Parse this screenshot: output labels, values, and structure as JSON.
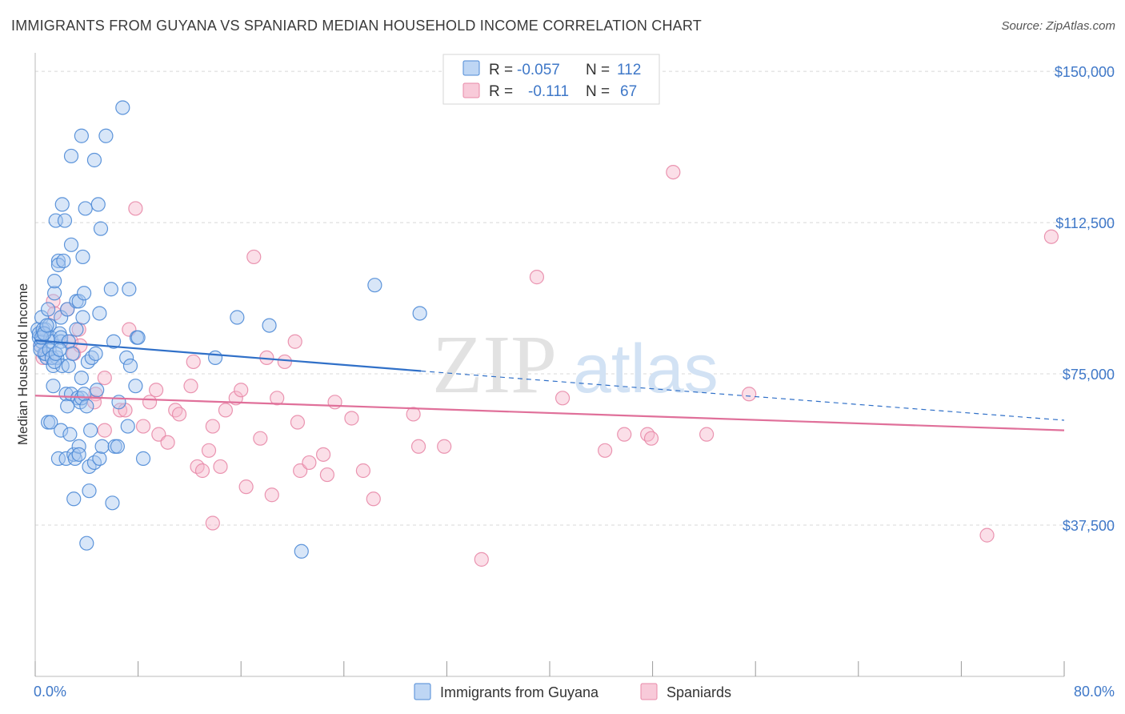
{
  "header": {
    "title": "IMMIGRANTS FROM GUYANA VS SPANIARD MEDIAN HOUSEHOLD INCOME CORRELATION CHART",
    "source": "Source: ZipAtlas.com"
  },
  "watermark": {
    "zip": "ZIP",
    "atlas": "atlas"
  },
  "legend": {
    "rows": [
      {
        "r_label": "R =",
        "r_value": "-0.057",
        "n_label": "N =",
        "n_value": "112"
      },
      {
        "r_label": "R =",
        "r_value": "-0.111",
        "n_label": "N =",
        "n_value": "67"
      }
    ]
  },
  "colors": {
    "series1_fill": "#a8c8f0",
    "series1_stroke": "#4d8ad6",
    "series1_line": "#3070c8",
    "series2_fill": "#f6b8cc",
    "series2_stroke": "#e889a8",
    "series2_line": "#e0709a",
    "tick_text": "#3f78c8",
    "grid": "#d8d8d8"
  },
  "chart_data": {
    "type": "scatter",
    "title": "IMMIGRANTS FROM GUYANA VS SPANIARD MEDIAN HOUSEHOLD INCOME CORRELATION CHART",
    "xlabel": "",
    "ylabel": "Median Household Income",
    "xlim": [
      0,
      80
    ],
    "ylim": [
      0,
      153000
    ],
    "x_tick_labels": [
      "0.0%",
      "80.0%"
    ],
    "y_ticks": [
      37500,
      75000,
      112500,
      150000
    ],
    "y_tick_labels": [
      "$37,500",
      "$75,000",
      "$112,500",
      "$150,000"
    ],
    "grid": true,
    "legend_position": "bottom-center",
    "series": [
      {
        "name": "Immigrants from Guyana",
        "color": "#4d8ad6",
        "trend": {
          "x": [
            0,
            30,
            80
          ],
          "y": [
            83300,
            75700,
            63500
          ],
          "solid_until": 30
        },
        "points": [
          [
            0.2,
            86
          ],
          [
            0.3,
            84
          ],
          [
            0.4,
            82
          ],
          [
            0.5,
            89
          ],
          [
            0.6,
            85
          ],
          [
            0.7,
            80
          ],
          [
            0.8,
            86
          ],
          [
            0.9,
            79
          ],
          [
            0.3,
            85
          ],
          [
            0.5,
            83
          ],
          [
            0.6,
            86
          ],
          [
            0.8,
            80
          ],
          [
            1.0,
            91
          ],
          [
            1.1,
            87
          ],
          [
            1.2,
            84
          ],
          [
            1.3,
            83
          ],
          [
            1.0,
            63
          ],
          [
            1.2,
            63
          ],
          [
            1.4,
            72
          ],
          [
            1.4,
            77
          ],
          [
            1.5,
            95
          ],
          [
            1.5,
            98
          ],
          [
            1.6,
            113
          ],
          [
            1.7,
            79
          ],
          [
            1.8,
            103
          ],
          [
            1.8,
            102
          ],
          [
            1.8,
            54
          ],
          [
            1.9,
            85
          ],
          [
            2.0,
            83
          ],
          [
            2.0,
            61
          ],
          [
            2.0,
            89
          ],
          [
            2.1,
            77
          ],
          [
            2.0,
            84
          ],
          [
            2.1,
            117
          ],
          [
            2.2,
            103
          ],
          [
            2.3,
            113
          ],
          [
            2.4,
            54
          ],
          [
            2.4,
            70
          ],
          [
            2.5,
            67
          ],
          [
            2.5,
            91
          ],
          [
            2.6,
            83
          ],
          [
            2.6,
            77
          ],
          [
            2.7,
            60
          ],
          [
            2.8,
            70
          ],
          [
            2.8,
            129
          ],
          [
            2.8,
            107
          ],
          [
            2.9,
            80
          ],
          [
            3.0,
            55
          ],
          [
            3.0,
            44
          ],
          [
            3.1,
            54
          ],
          [
            3.2,
            86
          ],
          [
            3.2,
            93
          ],
          [
            3.3,
            69
          ],
          [
            3.4,
            57
          ],
          [
            3.4,
            55
          ],
          [
            3.4,
            93
          ],
          [
            3.5,
            68
          ],
          [
            3.6,
            134
          ],
          [
            3.6,
            74
          ],
          [
            3.6,
            69
          ],
          [
            3.7,
            104
          ],
          [
            3.7,
            89
          ],
          [
            3.8,
            95
          ],
          [
            3.8,
            70
          ],
          [
            3.9,
            116
          ],
          [
            4.0,
            67
          ],
          [
            4.0,
            33
          ],
          [
            4.1,
            78
          ],
          [
            4.2,
            46
          ],
          [
            4.2,
            52
          ],
          [
            4.3,
            61
          ],
          [
            4.4,
            79
          ],
          [
            4.6,
            53
          ],
          [
            4.6,
            128
          ],
          [
            4.7,
            80
          ],
          [
            4.8,
            71
          ],
          [
            4.9,
            117
          ],
          [
            5.0,
            90
          ],
          [
            5.0,
            54
          ],
          [
            5.1,
            111
          ],
          [
            5.2,
            57
          ],
          [
            5.5,
            134
          ],
          [
            5.9,
            96
          ],
          [
            6.0,
            43
          ],
          [
            6.1,
            83
          ],
          [
            6.2,
            57
          ],
          [
            6.4,
            57
          ],
          [
            6.5,
            68
          ],
          [
            6.8,
            141
          ],
          [
            7.1,
            79
          ],
          [
            7.2,
            62
          ],
          [
            7.3,
            96
          ],
          [
            7.4,
            77
          ],
          [
            7.8,
            72
          ],
          [
            7.9,
            84
          ],
          [
            8.0,
            84
          ],
          [
            8.4,
            54
          ],
          [
            14.0,
            79
          ],
          [
            15.7,
            89
          ],
          [
            18.2,
            87
          ],
          [
            20.7,
            31
          ],
          [
            26.4,
            97
          ],
          [
            29.9,
            90
          ],
          [
            0.4,
            81
          ],
          [
            0.5,
            84
          ],
          [
            0.7,
            85
          ],
          [
            0.9,
            87
          ],
          [
            1.1,
            81
          ],
          [
            1.3,
            79
          ],
          [
            1.5,
            78
          ],
          [
            1.6,
            80
          ],
          [
            1.9,
            81
          ]
        ]
      },
      {
        "name": "Spaniards",
        "color": "#e889a8",
        "trend": {
          "x": [
            0,
            80
          ],
          "y": [
            69600,
            61000
          ]
        },
        "points": [
          [
            0.4,
            82
          ],
          [
            0.6,
            79
          ],
          [
            1.4,
            93
          ],
          [
            1.5,
            90
          ],
          [
            2.5,
            91
          ],
          [
            2.8,
            83
          ],
          [
            3.0,
            80
          ],
          [
            3.4,
            86
          ],
          [
            3.5,
            82
          ],
          [
            4.7,
            70
          ],
          [
            4.6,
            68
          ],
          [
            5.4,
            74
          ],
          [
            5.4,
            61
          ],
          [
            6.6,
            66
          ],
          [
            7.3,
            86
          ],
          [
            7.0,
            66
          ],
          [
            7.8,
            116
          ],
          [
            8.4,
            62
          ],
          [
            8.9,
            68
          ],
          [
            9.4,
            71
          ],
          [
            9.6,
            60
          ],
          [
            10.3,
            58
          ],
          [
            10.9,
            66
          ],
          [
            11.2,
            65
          ],
          [
            12.1,
            72
          ],
          [
            12.3,
            78
          ],
          [
            12.6,
            52
          ],
          [
            13.0,
            51
          ],
          [
            13.5,
            56
          ],
          [
            13.8,
            62
          ],
          [
            14.4,
            52
          ],
          [
            14.8,
            66
          ],
          [
            15.6,
            69
          ],
          [
            16.0,
            71
          ],
          [
            16.4,
            47
          ],
          [
            17.0,
            104
          ],
          [
            17.5,
            59
          ],
          [
            18.0,
            79
          ],
          [
            18.4,
            45
          ],
          [
            18.8,
            69
          ],
          [
            19.4,
            78
          ],
          [
            20.2,
            83
          ],
          [
            20.4,
            63
          ],
          [
            20.6,
            51
          ],
          [
            21.3,
            53
          ],
          [
            22.4,
            55
          ],
          [
            22.7,
            50
          ],
          [
            23.3,
            68
          ],
          [
            24.6,
            64
          ],
          [
            25.5,
            51
          ],
          [
            26.3,
            44
          ],
          [
            29.4,
            65
          ],
          [
            29.8,
            57
          ],
          [
            31.8,
            57
          ],
          [
            34.7,
            29
          ],
          [
            39.0,
            99
          ],
          [
            41.0,
            69
          ],
          [
            44.3,
            56
          ],
          [
            45.8,
            60
          ],
          [
            47.6,
            60
          ],
          [
            47.9,
            59
          ],
          [
            49.6,
            125
          ],
          [
            52.2,
            60
          ],
          [
            55.5,
            70
          ],
          [
            74.0,
            35
          ],
          [
            79.0,
            109
          ],
          [
            13.8,
            38
          ]
        ]
      }
    ]
  }
}
